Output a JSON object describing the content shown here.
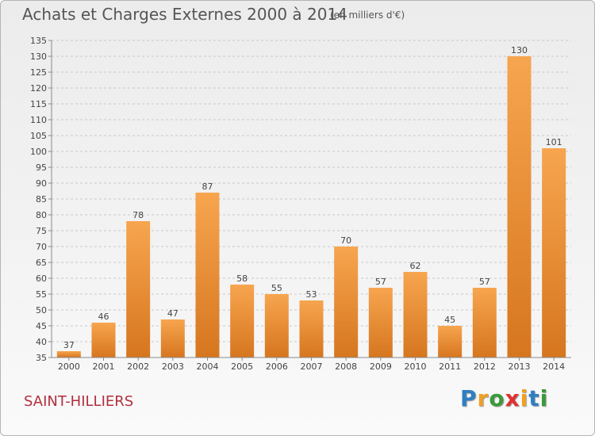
{
  "header": {
    "title": "Achats et Charges Externes 2000 à 2014",
    "unit": "(en milliers d'€)"
  },
  "footer": {
    "commune": "SAINT-HILLIERS",
    "logo_letters": [
      "P",
      "r",
      "o",
      "x",
      "i",
      "t",
      "i"
    ],
    "logo_colors": [
      "#2f7fc1",
      "#f0a020",
      "#3a9a3a",
      "#e03030",
      "#f0a020",
      "#2f7fc1",
      "#3a9a3a"
    ]
  },
  "colors": {
    "bar_light": "#f7a54f",
    "bar_dark": "#d6761f",
    "grid": "#c8c8c8",
    "axis": "#8a8a8a",
    "text": "#444444"
  },
  "chart_data": {
    "type": "bar",
    "title": "Achats et Charges Externes 2000 à 2014",
    "subtitle": "(en milliers d'€)",
    "categories": [
      "2000",
      "2001",
      "2002",
      "2003",
      "2004",
      "2005",
      "2006",
      "2007",
      "2008",
      "2009",
      "2010",
      "2011",
      "2012",
      "2013",
      "2014"
    ],
    "values": [
      37,
      46,
      78,
      47,
      87,
      58,
      55,
      53,
      70,
      57,
      62,
      45,
      57,
      130,
      101
    ],
    "ylim": [
      35,
      135
    ],
    "yticks": [
      35,
      40,
      45,
      50,
      55,
      60,
      65,
      70,
      75,
      80,
      85,
      90,
      95,
      100,
      105,
      110,
      115,
      120,
      125,
      130,
      135
    ],
    "grid": true,
    "data_labels": true
  }
}
